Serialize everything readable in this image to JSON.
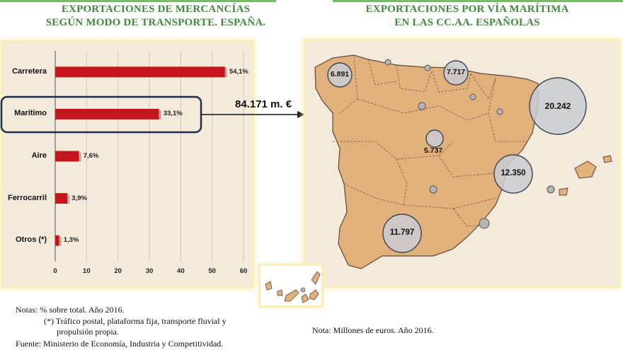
{
  "titles": {
    "left_line1": "EXPORTACIONES DE MERCANCÍAS",
    "left_line2": "SEGÚN MODO DE TRANSPORTE. ESPAÑA.",
    "right_line1": "EXPORTACIONES POR VÍA MARÍTIMA",
    "right_line2": "EN LAS CC.AA. ESPAÑOLAS"
  },
  "chart_data": {
    "type": "bar",
    "orientation": "horizontal",
    "categories": [
      "Carretera",
      "Marítimo",
      "Aire",
      "Ferrocarril",
      "Otros (*)"
    ],
    "values": [
      54.1,
      33.1,
      7.6,
      3.9,
      1.3
    ],
    "value_labels": [
      "54,1%",
      "33,1%",
      "7,6%",
      "3,9%",
      "1,3%"
    ],
    "xticks": [
      0,
      10,
      20,
      30,
      40,
      50,
      60
    ],
    "xlim": [
      0,
      60
    ],
    "highlighted_category": "Marítimo",
    "bar_color": "#c8151b"
  },
  "map": {
    "total_label": "84.171 m. €",
    "land_color": "#e2b07a",
    "bubbles": [
      {
        "label": "6.891"
      },
      {
        "label": "7.717"
      },
      {
        "label": "20.242"
      },
      {
        "label": "5.737"
      },
      {
        "label": "12.350"
      },
      {
        "label": "11.797"
      }
    ]
  },
  "notes": {
    "left_line1": "Notas: % sobre total. Año 2016.",
    "left_line2": "(*) Tráfico postal, plataforma fija, transporte fluvial y",
    "left_line3": "propulsión propia.",
    "source": "Fuente: Ministerio de Economía, Industria y Competitividad.",
    "right": "Nota: Millones de euros. Año 2016."
  }
}
